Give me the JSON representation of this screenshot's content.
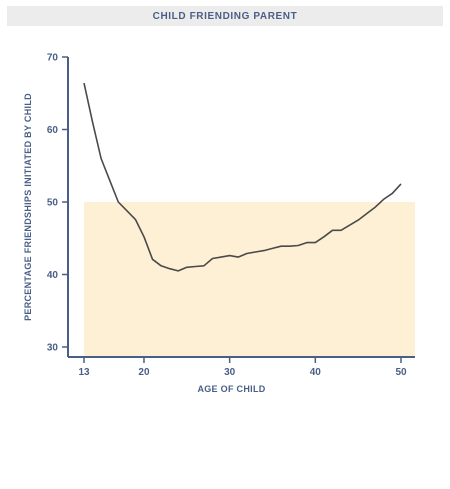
{
  "chart_data": {
    "type": "line",
    "title": "CHILD FRIENDING PARENT",
    "xlabel": "AGE OF CHILD",
    "ylabel": "PERCENTAGE FRIENDSHIPS INITIATED BY CHILD",
    "xlim": [
      12,
      51
    ],
    "ylim": [
      29,
      70
    ],
    "x_ticks": [
      13,
      20,
      30,
      40,
      50
    ],
    "y_ticks": [
      30,
      40,
      50,
      60,
      70
    ],
    "grid": false,
    "shaded_region": {
      "x": [
        13,
        51
      ],
      "y": [
        29,
        50
      ],
      "color": "#fdf0d5"
    },
    "series": [
      {
        "color": "#4a4a4a",
        "x": [
          13,
          14,
          15,
          16,
          17,
          18,
          19,
          20,
          21,
          22,
          23,
          24,
          25,
          26,
          27,
          28,
          29,
          30,
          31,
          32,
          33,
          34,
          35,
          36,
          37,
          38,
          39,
          40,
          41,
          42,
          43,
          44,
          45,
          46,
          47,
          48,
          49,
          50
        ],
        "values": [
          66.4,
          61.0,
          56.0,
          53.0,
          50.0,
          48.8,
          47.6,
          45.2,
          42.1,
          41.2,
          40.8,
          40.5,
          41.0,
          41.1,
          41.2,
          42.2,
          42.4,
          42.6,
          42.4,
          42.9,
          43.1,
          43.3,
          43.6,
          43.9,
          43.9,
          44.0,
          44.4,
          44.4,
          45.2,
          46.1,
          46.1,
          46.8,
          47.5,
          48.4,
          49.3,
          50.4,
          51.2,
          52.5
        ]
      }
    ]
  }
}
